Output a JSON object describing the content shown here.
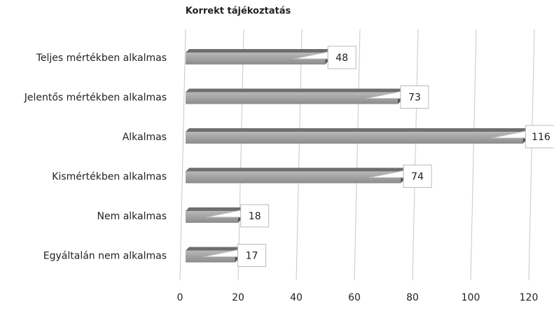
{
  "chart_data": {
    "type": "bar",
    "orientation": "horizontal",
    "title": "Korrekt tájékoztatás",
    "categories": [
      "Teljes mértékben alkalmas",
      "Jelentős mértékben alkalmas",
      "Alkalmas",
      "Kismértékben alkalmas",
      "Nem alkalmas",
      "Egyáltalán nem alkalmas"
    ],
    "values": [
      48,
      73,
      116,
      74,
      18,
      17
    ],
    "color": "#9a9a9a",
    "xlim": [
      0,
      120
    ],
    "xticks": [
      0,
      20,
      40,
      60,
      80,
      100,
      120
    ],
    "grid": true
  }
}
